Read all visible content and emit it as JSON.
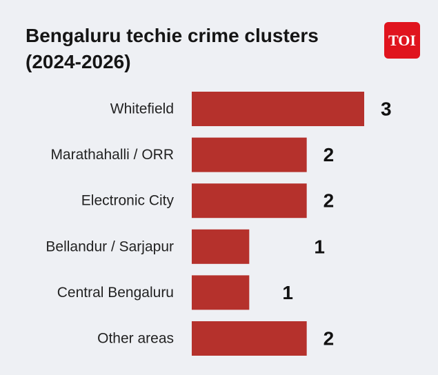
{
  "logo": {
    "text": "TOI"
  },
  "colors": {
    "bar": "#b5312c",
    "background": "#eef0f4",
    "logo_bg": "#e0141e"
  },
  "chart_data": {
    "type": "bar",
    "orientation": "horizontal",
    "title": "Bengaluru techie crime clusters (2024-2026)",
    "categories": [
      "Whitefield",
      "Marathahalli / ORR",
      "Electronic City",
      "Bellandur / Sarjapur",
      "Central Bengaluru",
      "Other areas"
    ],
    "values": [
      3,
      2,
      2,
      1,
      1,
      2
    ],
    "xlim": [
      0,
      3
    ],
    "xlabel": "",
    "ylabel": "",
    "grid": false,
    "legend": "none"
  }
}
